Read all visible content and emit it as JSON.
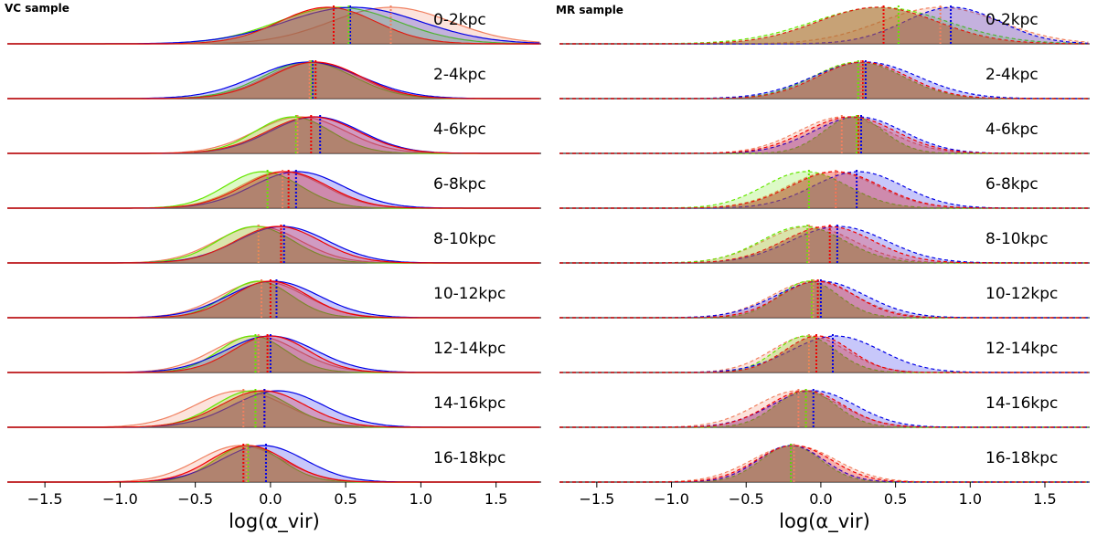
{
  "chart_data": [
    {
      "type": "area",
      "title": "VC sample",
      "xlabel": "log(α_vir)",
      "xlim": [
        -1.75,
        1.8
      ],
      "xticks": [
        -1.5,
        -1.0,
        -0.5,
        0.0,
        0.5,
        1.0,
        1.5
      ],
      "xtick_labels": [
        "−1.5",
        "−1.0",
        "−0.5",
        "0.0",
        "0.5",
        "1.0",
        "1.5"
      ],
      "line_style": "solid",
      "series_colors": {
        "red": "#f00000",
        "blue": "#0000e6",
        "green": "#66e600",
        "salmon": "#f08060",
        "brown_fill": "#a87a4a"
      },
      "rows": [
        {
          "label": "0-2kpc",
          "series": [
            {
              "name": "red",
              "mu": 0.38,
              "sigma": 0.32,
              "median": 0.42
            },
            {
              "name": "blue",
              "mu": 0.55,
              "sigma": 0.45,
              "median": 0.53
            },
            {
              "name": "green",
              "mu": 0.45,
              "sigma": 0.4,
              "median": 0.52
            },
            {
              "name": "salmon",
              "mu": 0.8,
              "sigma": 0.4,
              "median": 0.8
            }
          ]
        },
        {
          "label": "2-4kpc",
          "series": [
            {
              "name": "red",
              "mu": 0.3,
              "sigma": 0.3,
              "median": 0.3
            },
            {
              "name": "blue",
              "mu": 0.25,
              "sigma": 0.35,
              "median": 0.28
            },
            {
              "name": "green",
              "mu": 0.25,
              "sigma": 0.3,
              "median": 0.27
            },
            {
              "name": "salmon",
              "mu": 0.28,
              "sigma": 0.3,
              "median": 0.26
            }
          ]
        },
        {
          "label": "4-6kpc",
          "series": [
            {
              "name": "red",
              "mu": 0.28,
              "sigma": 0.3,
              "median": 0.27
            },
            {
              "name": "blue",
              "mu": 0.3,
              "sigma": 0.3,
              "median": 0.33
            },
            {
              "name": "green",
              "mu": 0.15,
              "sigma": 0.25,
              "median": 0.17
            },
            {
              "name": "salmon",
              "mu": 0.2,
              "sigma": 0.3,
              "median": 0.18
            }
          ]
        },
        {
          "label": "6-8kpc",
          "series": [
            {
              "name": "red",
              "mu": 0.1,
              "sigma": 0.28,
              "median": 0.12
            },
            {
              "name": "blue",
              "mu": 0.18,
              "sigma": 0.3,
              "median": 0.17
            },
            {
              "name": "green",
              "mu": -0.05,
              "sigma": 0.25,
              "median": -0.02
            },
            {
              "name": "salmon",
              "mu": 0.08,
              "sigma": 0.28,
              "median": 0.08
            }
          ]
        },
        {
          "label": "8-10kpc",
          "series": [
            {
              "name": "red",
              "mu": 0.05,
              "sigma": 0.28,
              "median": 0.07
            },
            {
              "name": "blue",
              "mu": 0.08,
              "sigma": 0.3,
              "median": 0.09
            },
            {
              "name": "green",
              "mu": -0.1,
              "sigma": 0.25,
              "median": -0.08
            },
            {
              "name": "salmon",
              "mu": -0.08,
              "sigma": 0.28,
              "median": -0.08
            }
          ]
        },
        {
          "label": "10-12kpc",
          "series": [
            {
              "name": "red",
              "mu": 0.0,
              "sigma": 0.25,
              "median": 0.0
            },
            {
              "name": "blue",
              "mu": 0.02,
              "sigma": 0.3,
              "median": 0.04
            },
            {
              "name": "green",
              "mu": -0.08,
              "sigma": 0.22,
              "median": -0.06
            },
            {
              "name": "salmon",
              "mu": -0.05,
              "sigma": 0.28,
              "median": -0.06
            }
          ]
        },
        {
          "label": "12-14kpc",
          "series": [
            {
              "name": "red",
              "mu": 0.0,
              "sigma": 0.25,
              "median": -0.02
            },
            {
              "name": "blue",
              "mu": 0.0,
              "sigma": 0.3,
              "median": 0.0
            },
            {
              "name": "green",
              "mu": -0.12,
              "sigma": 0.22,
              "median": -0.1
            },
            {
              "name": "salmon",
              "mu": -0.1,
              "sigma": 0.28,
              "median": -0.08
            }
          ]
        },
        {
          "label": "14-16kpc",
          "series": [
            {
              "name": "red",
              "mu": -0.05,
              "sigma": 0.28,
              "median": -0.04
            },
            {
              "name": "blue",
              "mu": 0.05,
              "sigma": 0.3,
              "median": -0.04
            },
            {
              "name": "green",
              "mu": -0.12,
              "sigma": 0.25,
              "median": -0.1
            },
            {
              "name": "salmon",
              "mu": -0.2,
              "sigma": 0.3,
              "median": -0.18
            }
          ]
        },
        {
          "label": "16-18kpc",
          "series": [
            {
              "name": "red",
              "mu": -0.15,
              "sigma": 0.25,
              "median": -0.18
            },
            {
              "name": "blue",
              "mu": -0.05,
              "sigma": 0.28,
              "median": -0.03
            },
            {
              "name": "green",
              "mu": -0.15,
              "sigma": 0.22,
              "median": -0.15
            },
            {
              "name": "salmon",
              "mu": -0.2,
              "sigma": 0.28,
              "median": -0.16
            }
          ]
        }
      ]
    },
    {
      "type": "area",
      "title": "MR sample",
      "xlabel": "log(α_vir)",
      "xlim": [
        -1.75,
        1.8
      ],
      "xticks": [
        -1.5,
        -1.0,
        -0.5,
        0.0,
        0.5,
        1.0,
        1.5
      ],
      "xtick_labels": [
        "−1.5",
        "−1.0",
        "−0.5",
        "0.0",
        "0.5",
        "1.0",
        "1.5"
      ],
      "line_style": "dashed",
      "series_colors": {
        "red": "#f00000",
        "blue": "#0000e6",
        "green": "#66e600",
        "salmon": "#f08060",
        "brown_fill": "#a87a4a"
      },
      "rows": [
        {
          "label": "0-2kpc",
          "series": [
            {
              "name": "red",
              "mu": 0.38,
              "sigma": 0.4,
              "median": 0.42
            },
            {
              "name": "blue",
              "mu": 0.88,
              "sigma": 0.32,
              "median": 0.87
            },
            {
              "name": "green",
              "mu": 0.4,
              "sigma": 0.45,
              "median": 0.52
            },
            {
              "name": "salmon",
              "mu": 0.8,
              "sigma": 0.4,
              "median": 0.8
            }
          ]
        },
        {
          "label": "2-4kpc",
          "series": [
            {
              "name": "red",
              "mu": 0.28,
              "sigma": 0.3,
              "median": 0.28
            },
            {
              "name": "blue",
              "mu": 0.3,
              "sigma": 0.35,
              "median": 0.3
            },
            {
              "name": "green",
              "mu": 0.25,
              "sigma": 0.3,
              "median": 0.25
            },
            {
              "name": "salmon",
              "mu": 0.25,
              "sigma": 0.3,
              "median": 0.27
            }
          ]
        },
        {
          "label": "4-6kpc",
          "series": [
            {
              "name": "red",
              "mu": 0.2,
              "sigma": 0.3,
              "median": 0.25
            },
            {
              "name": "blue",
              "mu": 0.25,
              "sigma": 0.3,
              "median": 0.27
            },
            {
              "name": "green",
              "mu": 0.22,
              "sigma": 0.2,
              "median": 0.24
            },
            {
              "name": "salmon",
              "mu": 0.15,
              "sigma": 0.3,
              "median": 0.14
            }
          ]
        },
        {
          "label": "6-8kpc",
          "series": [
            {
              "name": "red",
              "mu": 0.1,
              "sigma": 0.3,
              "median": 0.1
            },
            {
              "name": "blue",
              "mu": 0.25,
              "sigma": 0.3,
              "median": 0.24
            },
            {
              "name": "green",
              "mu": -0.1,
              "sigma": 0.28,
              "median": -0.08
            },
            {
              "name": "salmon",
              "mu": 0.08,
              "sigma": 0.3,
              "median": 0.1
            }
          ]
        },
        {
          "label": "8-10kpc",
          "series": [
            {
              "name": "red",
              "mu": 0.05,
              "sigma": 0.3,
              "median": 0.06
            },
            {
              "name": "blue",
              "mu": 0.12,
              "sigma": 0.32,
              "median": 0.11
            },
            {
              "name": "green",
              "mu": -0.12,
              "sigma": 0.28,
              "median": -0.09
            },
            {
              "name": "salmon",
              "mu": -0.08,
              "sigma": 0.3,
              "median": -0.08
            }
          ]
        },
        {
          "label": "10-12kpc",
          "series": [
            {
              "name": "red",
              "mu": -0.02,
              "sigma": 0.25,
              "median": -0.02
            },
            {
              "name": "blue",
              "mu": 0.0,
              "sigma": 0.3,
              "median": 0.0
            },
            {
              "name": "green",
              "mu": -0.08,
              "sigma": 0.2,
              "median": -0.06
            },
            {
              "name": "salmon",
              "mu": -0.05,
              "sigma": 0.28,
              "median": -0.05
            }
          ]
        },
        {
          "label": "12-14kpc",
          "series": [
            {
              "name": "red",
              "mu": -0.02,
              "sigma": 0.22,
              "median": -0.03
            },
            {
              "name": "blue",
              "mu": 0.1,
              "sigma": 0.3,
              "median": 0.08
            },
            {
              "name": "green",
              "mu": -0.1,
              "sigma": 0.2,
              "median": -0.08
            },
            {
              "name": "salmon",
              "mu": -0.08,
              "sigma": 0.25,
              "median": -0.08
            }
          ]
        },
        {
          "label": "14-16kpc",
          "series": [
            {
              "name": "red",
              "mu": -0.1,
              "sigma": 0.25,
              "median": -0.1
            },
            {
              "name": "blue",
              "mu": -0.05,
              "sigma": 0.28,
              "median": -0.05
            },
            {
              "name": "green",
              "mu": -0.1,
              "sigma": 0.2,
              "median": -0.1
            },
            {
              "name": "salmon",
              "mu": -0.15,
              "sigma": 0.28,
              "median": -0.15
            }
          ]
        },
        {
          "label": "16-18kpc",
          "series": [
            {
              "name": "red",
              "mu": -0.18,
              "sigma": 0.25,
              "median": -0.2
            },
            {
              "name": "blue",
              "mu": -0.2,
              "sigma": 0.22,
              "median": -0.2
            },
            {
              "name": "green",
              "mu": -0.2,
              "sigma": 0.2,
              "median": -0.2
            },
            {
              "name": "salmon",
              "mu": -0.18,
              "sigma": 0.28,
              "median": -0.18
            }
          ]
        }
      ]
    }
  ]
}
